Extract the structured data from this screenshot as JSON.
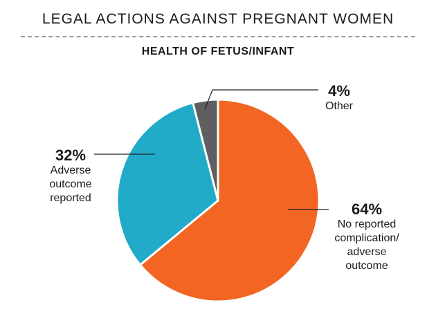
{
  "header": {
    "title": "LEGAL ACTIONS AGAINST PREGNANT WOMEN",
    "subtitle": "HEALTH OF FETUS/INFANT"
  },
  "chart_data": {
    "type": "pie",
    "title": "LEGAL ACTIONS AGAINST PREGNANT WOMEN",
    "subtitle": "HEALTH OF FETUS/INFANT",
    "slices": [
      {
        "label": "No reported complication/ adverse outcome",
        "value": 64,
        "value_label": "64%",
        "color": "#f26522"
      },
      {
        "label": "Adverse outcome reported",
        "value": 32,
        "value_label": "32%",
        "color": "#22abc8"
      },
      {
        "label": "Other",
        "value": 4,
        "value_label": "4%",
        "color": "#5e5f61"
      }
    ],
    "legend": "none",
    "start": "top",
    "direction": "clockwise"
  },
  "labels": {
    "orange": {
      "pct": "64%",
      "lines": [
        "No reported",
        "complication/",
        "adverse",
        "outcome"
      ]
    },
    "blue": {
      "pct": "32%",
      "lines": [
        "Adverse",
        "outcome",
        "reported"
      ]
    },
    "gray": {
      "pct": "4%",
      "lines": [
        "Other"
      ]
    }
  }
}
